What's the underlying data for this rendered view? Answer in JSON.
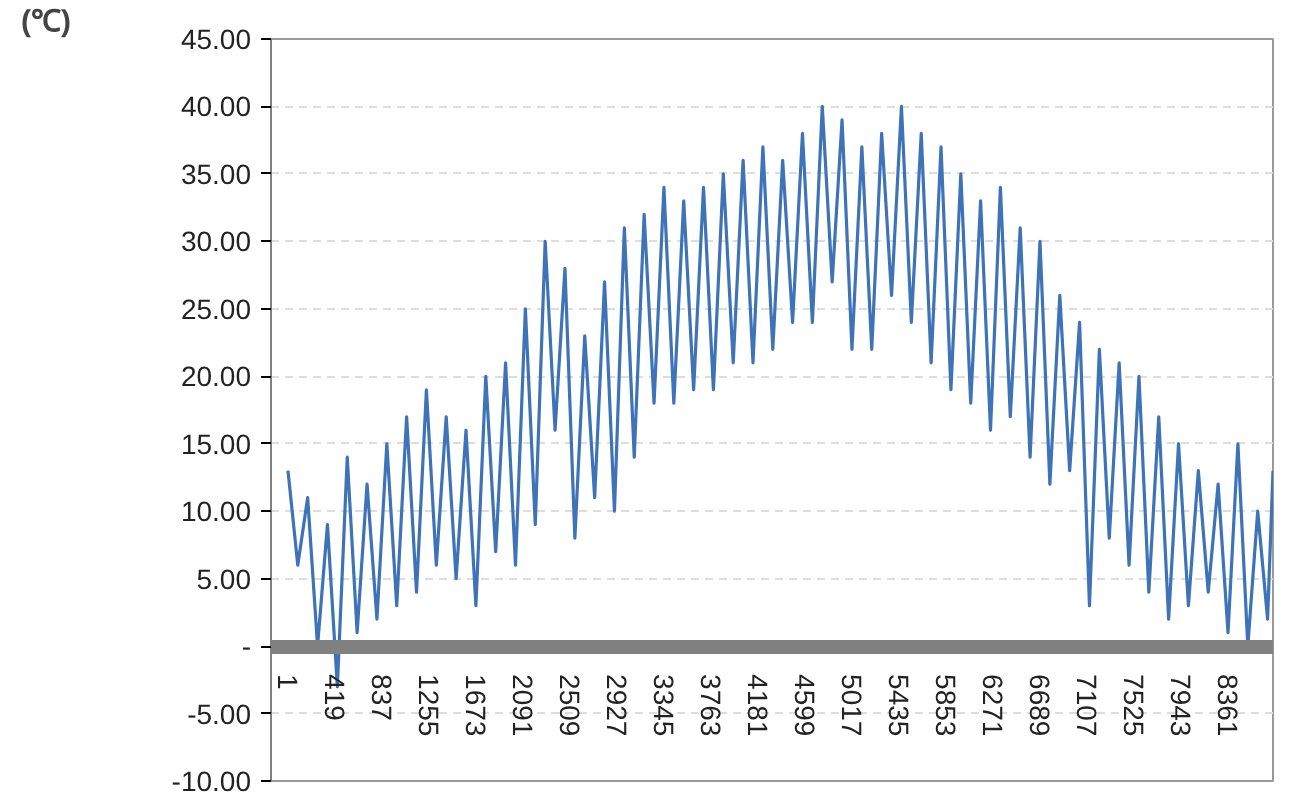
{
  "chart_data": {
    "type": "line",
    "ylabel": "(℃)",
    "x": [
      1,
      88,
      176,
      264,
      352,
      440,
      528,
      616,
      704,
      792,
      880,
      968,
      1056,
      1144,
      1232,
      1320,
      1408,
      1496,
      1584,
      1672,
      1760,
      1848,
      1936,
      2024,
      2112,
      2200,
      2288,
      2376,
      2464,
      2552,
      2640,
      2728,
      2816,
      2904,
      2992,
      3080,
      3168,
      3256,
      3344,
      3432,
      3520,
      3608,
      3696,
      3784,
      3872,
      3960,
      4048,
      4136,
      4224,
      4312,
      4400,
      4488,
      4576,
      4664,
      4752,
      4840,
      4928,
      5016,
      5104,
      5192,
      5280,
      5368,
      5456,
      5544,
      5632,
      5720,
      5808,
      5896,
      5984,
      6072,
      6160,
      6248,
      6336,
      6424,
      6512,
      6600,
      6688,
      6776,
      6864,
      6952,
      7040,
      7128,
      7216,
      7304,
      7392,
      7480,
      7568,
      7656,
      7744,
      7832,
      7920,
      8008,
      8096,
      8184,
      8272,
      8360,
      8448,
      8536,
      8624,
      8712,
      8760
    ],
    "series": [
      {
        "color": "#3e73b8",
        "values": [
          13,
          6,
          11,
          0,
          9,
          -3,
          14,
          1,
          12,
          2,
          15,
          3,
          17,
          4,
          19,
          6,
          17,
          5,
          16,
          3,
          20,
          7,
          21,
          6,
          25,
          9,
          30,
          16,
          28,
          8,
          23,
          11,
          27,
          10,
          31,
          14,
          32,
          18,
          34,
          18,
          33,
          19,
          34,
          19,
          35,
          21,
          36,
          21,
          37,
          22,
          36,
          24,
          38,
          24,
          40,
          27,
          39,
          22,
          37,
          22,
          38,
          26,
          40,
          24,
          38,
          21,
          37,
          19,
          35,
          18,
          33,
          16,
          34,
          17,
          31,
          14,
          30,
          12,
          26,
          13,
          24,
          3,
          22,
          8,
          21,
          6,
          20,
          4,
          17,
          2,
          15,
          3,
          13,
          4,
          12,
          1,
          15,
          0,
          10,
          2,
          13
        ]
      }
    ],
    "xlim": [
      -150,
      8760
    ],
    "xticks": [
      1,
      419,
      837,
      1255,
      1673,
      2091,
      2509,
      2927,
      3345,
      3763,
      4181,
      4599,
      5017,
      5435,
      5853,
      6271,
      6689,
      7107,
      7525,
      7943,
      8361
    ],
    "ylim": [
      -10,
      45
    ],
    "yticks": [
      {
        "value": -10,
        "label": "-10.00"
      },
      {
        "value": -5,
        "label": "-5.00"
      },
      {
        "value": 0,
        "label": "-"
      },
      {
        "value": 5,
        "label": "5.00"
      },
      {
        "value": 10,
        "label": "10.00"
      },
      {
        "value": 15,
        "label": "15.00"
      },
      {
        "value": 20,
        "label": "20.00"
      },
      {
        "value": 25,
        "label": "25.00"
      },
      {
        "value": 30,
        "label": "30.00"
      },
      {
        "value": 35,
        "label": "35.00"
      },
      {
        "value": 40,
        "label": "40.00"
      },
      {
        "value": 45,
        "label": "45.00"
      }
    ],
    "grid": "y",
    "marker": "none",
    "line_style": "solid"
  }
}
